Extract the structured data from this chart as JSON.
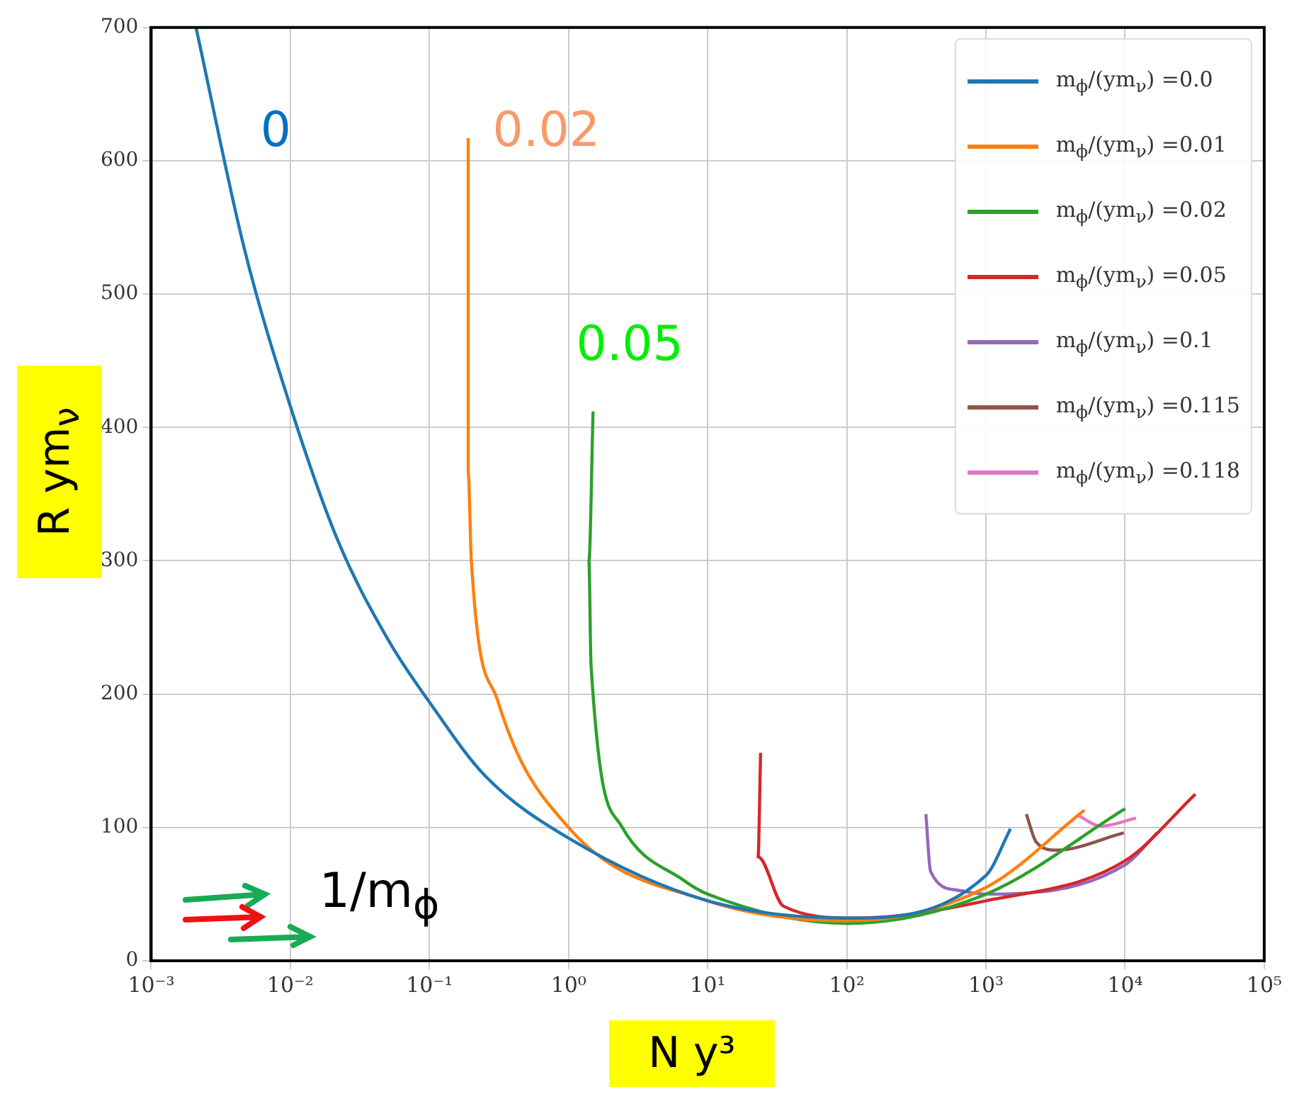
{
  "chart_data": {
    "type": "line",
    "xlabel": "N y³",
    "ylabel": "R ym$_{ν}$",
    "log": "x",
    "grid": true,
    "legend": "top right",
    "marker": "none",
    "line_style": "solid",
    "xlim": [
      0.001,
      100000
    ],
    "ylim": [
      0,
      700
    ],
    "xticks": [
      {
        "value": 0.001,
        "label": "10⁻³"
      },
      {
        "value": 0.01,
        "label": "10⁻²"
      },
      {
        "value": 0.1,
        "label": "10⁻¹"
      },
      {
        "value": 1,
        "label": "10⁰"
      },
      {
        "value": 10,
        "label": "10¹"
      },
      {
        "value": 100,
        "label": "10²"
      },
      {
        "value": 1000,
        "label": "10³"
      },
      {
        "value": 10000,
        "label": "10⁴"
      },
      {
        "value": 100000,
        "label": "10⁵"
      }
    ],
    "yticks": [
      0,
      100,
      200,
      300,
      400,
      500,
      600,
      700
    ],
    "series": [
      {
        "name": "m$_{ϕ}$/(ym$_{ν}$) =0.0",
        "color": "#1f77b4",
        "x": [
          0.0021,
          0.0047,
          0.01,
          0.022,
          0.051,
          0.1,
          0.25,
          1,
          10,
          100,
          1000,
          1500
        ],
        "values": [
          700,
          533,
          416,
          315,
          240,
          194,
          139,
          92,
          45,
          32,
          64,
          99
        ]
      },
      {
        "name": "m$_{ϕ}$/(ym$_{ν}$) =0.01",
        "color": "#ff7f0e",
        "x": [
          0.19,
          0.19,
          0.2,
          0.31,
          1,
          10,
          100,
          1000,
          5100
        ],
        "values": [
          617,
          366,
          300,
          195,
          100,
          45,
          30,
          55,
          113
        ]
      },
      {
        "name": "m$_{ϕ}$/(ym$_{ν}$) =0.02",
        "color": "#2ca02c",
        "x": [
          1.5,
          1.4,
          1.45,
          2.4,
          6.8,
          10,
          100,
          1000,
          10000
        ],
        "values": [
          412,
          300,
          222,
          101,
          60,
          50,
          28,
          50,
          114
        ]
      },
      {
        "name": "m$_{ϕ}$/(ym$_{ν}$) =0.05",
        "color": "#d62728",
        "x": [
          24,
          23,
          35,
          115,
          1000,
          10000,
          32000
        ],
        "values": [
          156,
          78,
          41,
          32,
          45,
          75,
          125
        ]
      },
      {
        "name": "m$_{ϕ}$/(ym$_{ν}$) =0.1",
        "color": "#9467bd",
        "x": [
          370,
          400,
          620,
          1000,
          10000,
          17000
        ],
        "values": [
          110,
          67,
          53,
          50,
          72,
          96
        ]
      },
      {
        "name": "m$_{ϕ}$/(ym$_{ν}$) =0.115",
        "color": "#8c564b",
        "x": [
          1950,
          2300,
          3200,
          9800
        ],
        "values": [
          110,
          89,
          83,
          96
        ]
      },
      {
        "name": "m$_{ϕ}$/(ym$_{ν}$) =0.118",
        "color": "#e377c2",
        "x": [
          4600,
          6700,
          12000
        ],
        "values": [
          109,
          101,
          107
        ]
      }
    ],
    "annotations": [
      "0",
      "0.02",
      "0.05",
      "1/m$_{ϕ}$"
    ]
  }
}
